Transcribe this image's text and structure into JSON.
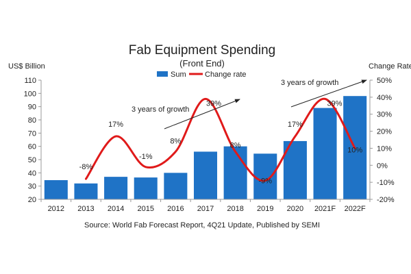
{
  "chart_data": {
    "type": "bar",
    "title": "Fab Equipment Spending",
    "subtitle": "(Front End)",
    "y_left_label": "US$ Billion",
    "y_right_label": "Change Rate",
    "categories": [
      "2012",
      "2013",
      "2014",
      "2015",
      "2016",
      "2017",
      "2018",
      "2019",
      "2020",
      "2021F",
      "2022F"
    ],
    "series": [
      {
        "name": "Sum",
        "type": "bar",
        "axis": "left",
        "color": "#1f73c6",
        "values": [
          34.5,
          32,
          37,
          36.5,
          40,
          56,
          60,
          54.5,
          64,
          89,
          98
        ]
      },
      {
        "name": "Change rate",
        "type": "line",
        "axis": "right",
        "color": "#e01a1a",
        "values": [
          null,
          -8,
          17,
          -1,
          8,
          39,
          8,
          -9,
          17,
          39,
          10
        ],
        "data_labels": [
          "",
          "-8%",
          "17%",
          "-1%",
          "8%",
          "39%",
          "8%",
          "-9%",
          "17%",
          "39%",
          "10%"
        ]
      }
    ],
    "y_left": {
      "min": 20,
      "max": 110,
      "ticks": [
        20,
        30,
        40,
        50,
        60,
        70,
        80,
        90,
        100,
        110
      ]
    },
    "y_right": {
      "min": -20,
      "max": 50,
      "ticks": [
        -20,
        -10,
        0,
        10,
        20,
        30,
        40,
        50
      ],
      "tick_labels": [
        "-20%",
        "-10%",
        "0%",
        "10%",
        "20%",
        "30%",
        "40%",
        "50%"
      ]
    },
    "grid": false,
    "legend_position": "top-center",
    "annotations": [
      {
        "text": "3 years of growth"
      },
      {
        "text": "3 years of growth"
      }
    ],
    "source": "Source: World Fab Forecast Report, 4Q21 Update, Published by SEMI"
  }
}
